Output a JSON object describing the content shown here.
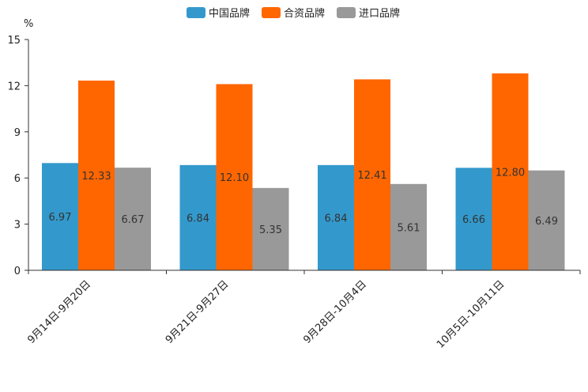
{
  "chart_data": {
    "type": "bar",
    "unit": "%",
    "categories": [
      "9月14日-9月20日",
      "9月21日-9月27日",
      "9月28日-10月4日",
      "10月5日-10月11日"
    ],
    "series": [
      {
        "name": "中国品牌",
        "color": "#3399cc",
        "values": [
          6.97,
          6.84,
          6.84,
          6.66
        ]
      },
      {
        "name": "合资品牌",
        "color": "#ff6600",
        "values": [
          12.33,
          12.1,
          12.41,
          12.8
        ]
      },
      {
        "name": "进口品牌",
        "color": "#999999",
        "values": [
          6.67,
          5.35,
          5.61,
          6.49
        ]
      }
    ],
    "ylim": [
      0,
      15
    ],
    "yticks": [
      0,
      3,
      6,
      9,
      12,
      15
    ],
    "legend_position": "top-center",
    "grid": false
  }
}
